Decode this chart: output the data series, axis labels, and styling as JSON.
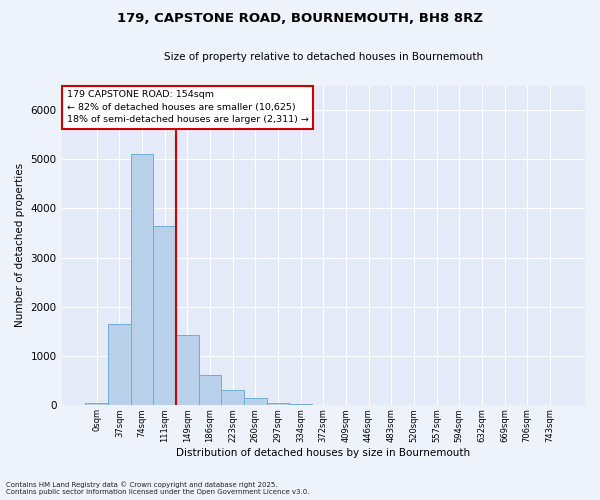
{
  "title": "179, CAPSTONE ROAD, BOURNEMOUTH, BH8 8RZ",
  "subtitle": "Size of property relative to detached houses in Bournemouth",
  "bar_labels": [
    "0sqm",
    "37sqm",
    "74sqm",
    "111sqm",
    "149sqm",
    "186sqm",
    "223sqm",
    "260sqm",
    "297sqm",
    "334sqm",
    "372sqm",
    "409sqm",
    "446sqm",
    "483sqm",
    "520sqm",
    "557sqm",
    "594sqm",
    "632sqm",
    "669sqm",
    "706sqm",
    "743sqm"
  ],
  "bar_values": [
    50,
    1650,
    5100,
    3650,
    1430,
    620,
    310,
    150,
    50,
    20,
    5,
    5,
    2,
    2,
    0,
    0,
    0,
    0,
    0,
    0,
    0
  ],
  "bar_color": "#b8d0ea",
  "bar_edge_color": "#6aaed6",
  "vline_color": "#cc0000",
  "ylim_max": 6500,
  "ylabel": "Number of detached properties",
  "xlabel": "Distribution of detached houses by size in Bournemouth",
  "annotation_title": "179 CAPSTONE ROAD: 154sqm",
  "annotation_line1": "← 82% of detached houses are smaller (10,625)",
  "annotation_line2": "18% of semi-detached houses are larger (2,311) →",
  "annotation_box_edgecolor": "#cc0000",
  "footnote1": "Contains HM Land Registry data © Crown copyright and database right 2025.",
  "footnote2": "Contains public sector information licensed under the Open Government Licence v3.0.",
  "bg_color": "#eef2fb",
  "plot_bg_color": "#e4eaf7"
}
